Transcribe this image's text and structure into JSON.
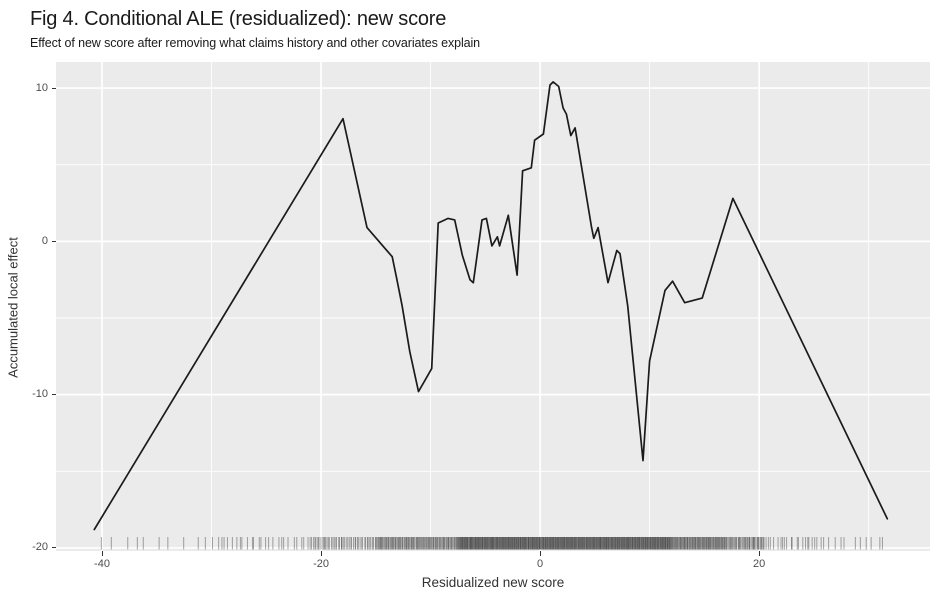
{
  "chart_data": {
    "type": "line",
    "title": "Fig 4. Conditional ALE (residualized): new score",
    "subtitle": "Effect of new score after removing what claims history and other covariates explain",
    "xlabel": "Residualized new score",
    "ylabel": "Accumulated local effect",
    "x_ticks": [
      -40,
      -20,
      0,
      20
    ],
    "x_minor_ticks": [
      -30,
      -10,
      10,
      30
    ],
    "y_ticks": [
      10,
      0,
      -10,
      -20
    ],
    "y_minor_ticks": [
      5,
      -5,
      -15
    ],
    "x_range": [
      -44.2,
      35.6
    ],
    "y_range": [
      -20.2,
      11.7
    ],
    "grid": true,
    "legend": "none",
    "series": [
      {
        "name": "conditional-ale",
        "points": [
          [
            -40.7,
            -18.8
          ],
          [
            -18.0,
            8.0
          ],
          [
            -15.8,
            0.9
          ],
          [
            -13.5,
            -1.0
          ],
          [
            -13.1,
            -2.4
          ],
          [
            -12.6,
            -4.2
          ],
          [
            -11.9,
            -7.2
          ],
          [
            -11.1,
            -9.8
          ],
          [
            -9.9,
            -8.3
          ],
          [
            -9.3,
            1.2
          ],
          [
            -8.4,
            1.5
          ],
          [
            -7.8,
            1.4
          ],
          [
            -7.1,
            -0.9
          ],
          [
            -6.4,
            -2.5
          ],
          [
            -6.1,
            -2.7
          ],
          [
            -5.3,
            1.4
          ],
          [
            -4.9,
            1.5
          ],
          [
            -4.4,
            -0.3
          ],
          [
            -3.9,
            0.3
          ],
          [
            -3.7,
            -0.3
          ],
          [
            -2.9,
            1.7
          ],
          [
            -2.1,
            -2.2
          ],
          [
            -1.6,
            4.6
          ],
          [
            -0.8,
            4.8
          ],
          [
            -0.5,
            6.6
          ],
          [
            0.3,
            7.0
          ],
          [
            0.9,
            10.2
          ],
          [
            1.2,
            10.4
          ],
          [
            1.7,
            10.1
          ],
          [
            2.1,
            8.7
          ],
          [
            2.4,
            8.3
          ],
          [
            2.8,
            6.9
          ],
          [
            3.2,
            7.4
          ],
          [
            4.7,
            0.9
          ],
          [
            4.9,
            0.2
          ],
          [
            5.3,
            0.9
          ],
          [
            6.2,
            -2.7
          ],
          [
            7.0,
            -0.6
          ],
          [
            7.3,
            -0.8
          ],
          [
            8.0,
            -4.2
          ],
          [
            9.4,
            -14.3
          ],
          [
            10.0,
            -7.8
          ],
          [
            11.4,
            -3.2
          ],
          [
            12.1,
            -2.6
          ],
          [
            13.2,
            -4.0
          ],
          [
            14.8,
            -3.7
          ],
          [
            17.6,
            2.8
          ],
          [
            31.7,
            -18.1
          ]
        ]
      }
    ],
    "rug": {
      "position": "bottom",
      "segments": [
        {
          "from": -40.7,
          "to": -30.0,
          "count": 10
        },
        {
          "from": -30.0,
          "to": -21.0,
          "count": 26
        },
        {
          "from": -21.0,
          "to": -15.0,
          "count": 48
        },
        {
          "from": -15.0,
          "to": -7.5,
          "count": 110
        },
        {
          "from": -7.5,
          "to": 3.0,
          "count": 260
        },
        {
          "from": 3.0,
          "to": 12.0,
          "count": 220
        },
        {
          "from": 12.0,
          "to": 17.0,
          "count": 90
        },
        {
          "from": 17.0,
          "to": 20.5,
          "count": 45
        },
        {
          "from": 20.5,
          "to": 26.0,
          "count": 22
        },
        {
          "from": 26.0,
          "to": 31.7,
          "count": 10
        }
      ]
    }
  },
  "style": {
    "background": "#FFFFFF",
    "panel_bg": "#EBEBEB",
    "grid_major": "#FFFFFF",
    "grid_minor": "#FFFFFF",
    "line_color": "#1B1B1B",
    "rug_color": "#1A1A1A",
    "title_color": "#1A1A1A",
    "axis_text_color": "#4D4D4D",
    "tick_color": "#333333"
  }
}
